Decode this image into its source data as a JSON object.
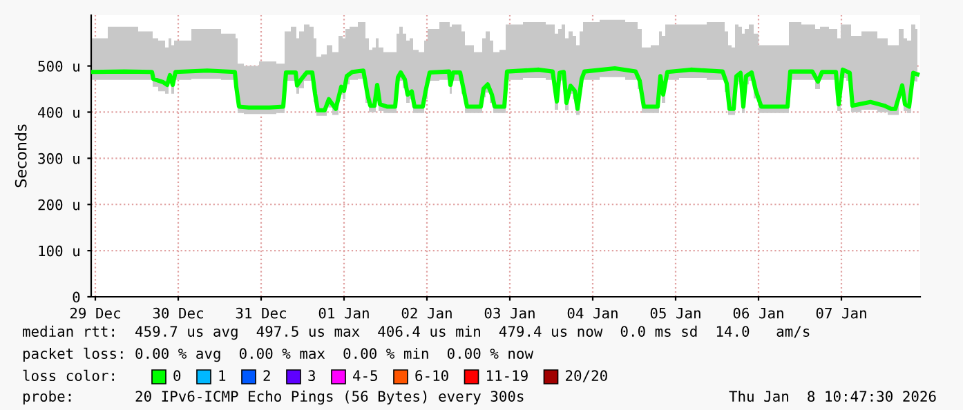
{
  "chart_data": {
    "type": "line",
    "ylabel": "Seconds",
    "x": [
      "2025-12-29T10:48",
      "2025-12-29T20:24",
      "2025-12-30T04:24",
      "2025-12-30T04:48",
      "2025-12-30T07:36",
      "2025-12-30T08:48",
      "2025-12-30T09:36",
      "2025-12-30T10:24",
      "2025-12-30T11:12",
      "2025-12-30T20:24",
      "2025-12-31T04:24",
      "2025-12-31T04:48",
      "2025-12-31T05:36",
      "2025-12-31T08:24",
      "2025-12-31T14:24",
      "2025-12-31T18:24",
      "2025-12-31T19:12",
      "2025-12-31T22:00",
      "2025-12-31T22:24",
      "2025-12-31T23:36",
      "2026-01-01T01:12",
      "2026-01-01T02:48",
      "2026-01-01T03:36",
      "2026-01-01T04:24",
      "2026-01-01T06:24",
      "2026-01-01T07:36",
      "2026-01-01T09:36",
      "2026-01-01T11:12",
      "2026-01-01T12:00",
      "2026-01-01T12:48",
      "2026-01-01T14:24",
      "2026-01-01T17:36",
      "2026-01-01T18:48",
      "2026-01-01T19:36",
      "2026-01-01T20:48",
      "2026-01-01T21:36",
      "2026-01-01T22:24",
      "2026-01-02T00:24",
      "2026-01-02T02:48",
      "2026-01-02T03:36",
      "2026-01-02T04:24",
      "2026-01-02T05:36",
      "2026-01-02T06:24",
      "2026-01-02T07:36",
      "2026-01-02T08:24",
      "2026-01-02T10:48",
      "2026-01-02T11:36",
      "2026-01-02T12:48",
      "2026-01-02T18:24",
      "2026-01-02T18:48",
      "2026-01-02T19:36",
      "2026-01-02T21:36",
      "2026-01-02T22:24",
      "2026-01-02T23:36",
      "2026-01-03T03:36",
      "2026-01-03T04:24",
      "2026-01-03T05:36",
      "2026-01-03T06:48",
      "2026-01-03T07:36",
      "2026-01-03T10:24",
      "2026-01-03T11:12",
      "2026-01-03T20:24",
      "2026-01-04T00:24",
      "2026-01-04T01:36",
      "2026-01-04T02:24",
      "2026-01-04T03:36",
      "2026-01-04T04:24",
      "2026-01-04T05:36",
      "2026-01-04T06:48",
      "2026-01-04T07:36",
      "2026-01-04T08:48",
      "2026-01-04T09:36",
      "2026-01-04T18:24",
      "2026-01-05T00:24",
      "2026-01-05T01:36",
      "2026-01-05T02:48",
      "2026-01-05T06:48",
      "2026-01-05T07:36",
      "2026-01-05T08:24",
      "2026-01-05T09:36",
      "2026-01-05T16:24",
      "2026-01-06T01:36",
      "2026-01-06T02:48",
      "2026-01-06T03:36",
      "2026-01-06T04:48",
      "2026-01-06T05:36",
      "2026-01-06T06:48",
      "2026-01-06T07:36",
      "2026-01-06T08:24",
      "2026-01-06T10:00",
      "2026-01-06T11:12",
      "2026-01-06T12:48",
      "2026-01-06T20:24",
      "2026-01-06T21:12",
      "2026-01-07T03:36",
      "2026-01-07T05:12",
      "2026-01-07T06:24",
      "2026-01-07T10:24",
      "2026-01-07T11:12",
      "2026-01-07T12:24",
      "2026-01-07T14:24",
      "2026-01-07T15:12",
      "2026-01-07T20:24",
      "2026-01-08T00:24",
      "2026-01-08T02:24",
      "2026-01-08T03:36",
      "2026-01-08T05:36",
      "2026-01-08T06:24",
      "2026-01-08T07:36",
      "2026-01-08T08:48",
      "2026-01-08T10:00"
    ],
    "series": [
      {
        "name": "0",
        "color": "#00ff00",
        "values": [
          487,
          488,
          487,
          472,
          465,
          459,
          480,
          459,
          487,
          490,
          487,
          455,
          412,
          410,
          410,
          412,
          486,
          486,
          458,
          471,
          486,
          486,
          440,
          404,
          404,
          428,
          407,
          455,
          446,
          478,
          487,
          490,
          438,
          414,
          414,
          459,
          417,
          412,
          412,
          475,
          486,
          471,
          438,
          445,
          412,
          412,
          445,
          486,
          488,
          459,
          486,
          486,
          457,
          412,
          412,
          451,
          460,
          438,
          412,
          412,
          488,
          492,
          488,
          423,
          485,
          487,
          420,
          457,
          446,
          407,
          472,
          488,
          495,
          488,
          468,
          412,
          412,
          478,
          438,
          487,
          492,
          488,
          462,
          407,
          407,
          478,
          485,
          412,
          478,
          486,
          447,
          412,
          412,
          488,
          488,
          466,
          487,
          487,
          417,
          492,
          485,
          414,
          422,
          414,
          407,
          407,
          458,
          417,
          412,
          485,
          482
        ],
        "lower": [
          470,
          470,
          470,
          455,
          445,
          440,
          462,
          440,
          470,
          472,
          470,
          440,
          398,
          396,
          396,
          398,
          468,
          468,
          440,
          452,
          468,
          468,
          422,
          392,
          392,
          410,
          394,
          438,
          428,
          460,
          470,
          472,
          420,
          400,
          400,
          440,
          402,
          398,
          398,
          458,
          468,
          452,
          420,
          428,
          398,
          398,
          428,
          468,
          470,
          440,
          468,
          468,
          440,
          398,
          398,
          432,
          442,
          420,
          398,
          398,
          470,
          474,
          470,
          405,
          468,
          470,
          404,
          440,
          428,
          394,
          455,
          470,
          476,
          470,
          450,
          398,
          398,
          460,
          420,
          470,
          474,
          470,
          444,
          394,
          394,
          460,
          466,
          398,
          460,
          468,
          430,
          398,
          398,
          470,
          470,
          450,
          470,
          470,
          402,
          474,
          468,
          400,
          405,
          400,
          394,
          394,
          440,
          402,
          398,
          468,
          466
        ],
        "upper": [
          560,
          585,
          575,
          560,
          555,
          540,
          560,
          545,
          555,
          580,
          570,
          560,
          505,
          500,
          510,
          505,
          575,
          585,
          560,
          575,
          590,
          585,
          560,
          520,
          525,
          545,
          530,
          565,
          560,
          580,
          585,
          595,
          560,
          535,
          540,
          560,
          540,
          530,
          530,
          570,
          585,
          570,
          555,
          560,
          535,
          530,
          555,
          580,
          595,
          585,
          590,
          590,
          575,
          545,
          530,
          560,
          575,
          555,
          530,
          535,
          590,
          595,
          590,
          570,
          580,
          590,
          560,
          575,
          565,
          545,
          575,
          595,
          600,
          595,
          580,
          540,
          545,
          575,
          565,
          590,
          590,
          595,
          575,
          545,
          540,
          590,
          585,
          570,
          580,
          590,
          570,
          545,
          545,
          595,
          590,
          580,
          585,
          580,
          560,
          590,
          590,
          565,
          575,
          560,
          545,
          545,
          580,
          560,
          555,
          590,
          580
        ]
      },
      {
        "name": "1",
        "color": "#00b8ff",
        "values": [
          null,
          null,
          null,
          null,
          null,
          null,
          null,
          null,
          null,
          null,
          null,
          null,
          null,
          null,
          null,
          null,
          null,
          null,
          null,
          null,
          null,
          null,
          null,
          null,
          null,
          null,
          null,
          null,
          null,
          null,
          null,
          null,
          null,
          null,
          null,
          null,
          null,
          null,
          null,
          null,
          null,
          null,
          null,
          null,
          null,
          null,
          null,
          null,
          null,
          null,
          null,
          null,
          null,
          null,
          null,
          null,
          null,
          null,
          null,
          null,
          null,
          null,
          null,
          null,
          null,
          null,
          null,
          null,
          null,
          null,
          null,
          null,
          null,
          null,
          null,
          null,
          null,
          null,
          null,
          null,
          null,
          null,
          null,
          null,
          null,
          null,
          null,
          null,
          null,
          null,
          null,
          null,
          null,
          null,
          null,
          null,
          null,
          null,
          null,
          null,
          null,
          null,
          null,
          null,
          null,
          null,
          null,
          null,
          null,
          null,
          null
        ]
      },
      {
        "name": "2",
        "color": "#0059ff",
        "values": [
          null,
          null,
          null,
          null,
          null,
          null,
          null,
          null,
          null,
          null,
          null,
          null,
          null,
          null,
          null,
          null,
          null,
          null,
          null,
          null,
          null,
          null,
          null,
          null,
          null,
          null,
          null,
          null,
          null,
          null,
          null,
          null,
          null,
          null,
          null,
          null,
          null,
          null,
          null,
          null,
          null,
          null,
          null,
          null,
          null,
          null,
          null,
          null,
          null,
          null,
          null,
          null,
          null,
          null,
          null,
          null,
          null,
          null,
          null,
          null,
          null,
          null,
          null,
          null,
          null,
          null,
          null,
          null,
          null,
          null,
          null,
          null,
          null,
          null,
          null,
          null,
          null,
          null,
          null,
          null,
          null,
          null,
          null,
          null,
          null,
          null,
          null,
          null,
          null,
          null,
          null,
          null,
          null,
          null,
          null,
          null,
          null,
          null,
          null,
          null,
          null,
          null,
          null,
          null,
          null,
          null,
          null,
          null,
          null,
          null,
          null
        ]
      },
      {
        "name": "3",
        "color": "#5e00ff",
        "values": [
          null,
          null,
          null,
          null,
          null,
          null,
          null,
          null,
          null,
          null,
          null,
          null,
          null,
          null,
          null,
          null,
          null,
          null,
          null,
          null,
          null,
          null,
          null,
          null,
          null,
          null,
          null,
          null,
          null,
          null,
          null,
          null,
          null,
          null,
          null,
          null,
          null,
          null,
          null,
          null,
          null,
          null,
          null,
          null,
          null,
          null,
          null,
          null,
          null,
          null,
          null,
          null,
          null,
          null,
          null,
          null,
          null,
          null,
          null,
          null,
          null,
          null,
          null,
          null,
          null,
          null,
          null,
          null,
          null,
          null,
          null,
          null,
          null,
          null,
          null,
          null,
          null,
          null,
          null,
          null,
          null,
          null,
          null,
          null,
          null,
          null,
          null,
          null,
          null,
          null,
          null,
          null,
          null,
          null,
          null,
          null,
          null,
          null,
          null,
          null,
          null,
          null,
          null,
          null,
          null,
          null,
          null,
          null,
          null,
          null,
          null
        ]
      },
      {
        "name": "4-5",
        "color": "#ff00ff",
        "values": [
          null,
          null,
          null,
          null,
          null,
          null,
          null,
          null,
          null,
          null,
          null,
          null,
          null,
          null,
          null,
          null,
          null,
          null,
          null,
          null,
          null,
          null,
          null,
          null,
          null,
          null,
          null,
          null,
          null,
          null,
          null,
          null,
          null,
          null,
          null,
          null,
          null,
          null,
          null,
          null,
          null,
          null,
          null,
          null,
          null,
          null,
          null,
          null,
          null,
          null,
          null,
          null,
          null,
          null,
          null,
          null,
          null,
          null,
          null,
          null,
          null,
          null,
          null,
          null,
          null,
          null,
          null,
          null,
          null,
          null,
          null,
          null,
          null,
          null,
          null,
          null,
          null,
          null,
          null,
          null,
          null,
          null,
          null,
          null,
          null,
          null,
          null,
          null,
          null,
          null,
          null,
          null,
          null,
          null,
          null,
          null,
          null,
          null,
          null,
          null,
          null,
          null,
          null,
          null,
          null,
          null,
          null,
          null,
          null,
          null,
          null
        ]
      },
      {
        "name": "6-10",
        "color": "#ff5500",
        "values": [
          null,
          null,
          null,
          null,
          null,
          null,
          null,
          null,
          null,
          null,
          null,
          null,
          null,
          null,
          null,
          null,
          null,
          null,
          null,
          null,
          null,
          null,
          null,
          null,
          null,
          null,
          null,
          null,
          null,
          null,
          null,
          null,
          null,
          null,
          null,
          null,
          null,
          null,
          null,
          null,
          null,
          null,
          null,
          null,
          null,
          null,
          null,
          null,
          null,
          null,
          null,
          null,
          null,
          null,
          null,
          null,
          null,
          null,
          null,
          null,
          null,
          null,
          null,
          null,
          null,
          null,
          null,
          null,
          null,
          null,
          null,
          null,
          null,
          null,
          null,
          null,
          null,
          null,
          null,
          null,
          null,
          null,
          null,
          null,
          null,
          null,
          null,
          null,
          null,
          null,
          null,
          null,
          null,
          null,
          null,
          null,
          null,
          null,
          null,
          null,
          null,
          null,
          null,
          null,
          null,
          null,
          null,
          null,
          null,
          null,
          null
        ]
      },
      {
        "name": "11-19",
        "color": "#ff0000",
        "values": [
          null,
          null,
          null,
          null,
          null,
          null,
          null,
          null,
          null,
          null,
          null,
          null,
          null,
          null,
          null,
          null,
          null,
          null,
          null,
          null,
          null,
          null,
          null,
          null,
          null,
          null,
          null,
          null,
          null,
          null,
          null,
          null,
          null,
          null,
          null,
          null,
          null,
          null,
          null,
          null,
          null,
          null,
          null,
          null,
          null,
          null,
          null,
          null,
          null,
          null,
          null,
          null,
          null,
          null,
          null,
          null,
          null,
          null,
          null,
          null,
          null,
          null,
          null,
          null,
          null,
          null,
          null,
          null,
          null,
          null,
          null,
          null,
          null,
          null,
          null,
          null,
          null,
          null,
          null,
          null,
          null,
          null,
          null,
          null,
          null,
          null,
          null,
          null,
          null,
          null,
          null,
          null,
          null,
          null,
          null,
          null,
          null,
          null,
          null,
          null,
          null,
          null,
          null,
          null,
          null,
          null,
          null,
          null,
          null,
          null,
          null
        ]
      },
      {
        "name": "20/20",
        "color": "#a10000",
        "values": [
          null,
          null,
          null,
          null,
          null,
          null,
          null,
          null,
          null,
          null,
          null,
          null,
          null,
          null,
          null,
          null,
          null,
          null,
          null,
          null,
          null,
          null,
          null,
          null,
          null,
          null,
          null,
          null,
          null,
          null,
          null,
          null,
          null,
          null,
          null,
          null,
          null,
          null,
          null,
          null,
          null,
          null,
          null,
          null,
          null,
          null,
          null,
          null,
          null,
          null,
          null,
          null,
          null,
          null,
          null,
          null,
          null,
          null,
          null,
          null,
          null,
          null,
          null,
          null,
          null,
          null,
          null,
          null,
          null,
          null,
          null,
          null,
          null,
          null,
          null,
          null,
          null,
          null,
          null,
          null,
          null,
          null,
          null,
          null,
          null,
          null,
          null,
          null,
          null,
          null,
          null,
          null,
          null,
          null,
          null,
          null,
          null,
          null,
          null,
          null,
          null,
          null,
          null,
          null,
          null,
          null,
          null,
          null,
          null,
          null,
          null
        ]
      }
    ],
    "xlim": [
      "2025-12-29T10:48",
      "2026-01-08T10:48"
    ],
    "xticks": [
      {
        "value": "2025-12-29T12:00",
        "label": "29 Dec"
      },
      {
        "value": "2025-12-30T12:00",
        "label": "30 Dec"
      },
      {
        "value": "2025-12-31T12:00",
        "label": "31 Dec"
      },
      {
        "value": "2026-01-01T12:00",
        "label": "01 Jan"
      },
      {
        "value": "2026-01-02T12:00",
        "label": "02 Jan"
      },
      {
        "value": "2026-01-03T12:00",
        "label": "03 Jan"
      },
      {
        "value": "2026-01-04T12:00",
        "label": "04 Jan"
      },
      {
        "value": "2026-01-05T12:00",
        "label": "05 Jan"
      },
      {
        "value": "2026-01-06T12:00",
        "label": "06 Jan"
      },
      {
        "value": "2026-01-07T12:00",
        "label": "07 Jan"
      }
    ],
    "ylim": [
      0,
      610
    ],
    "yticks": [
      0,
      {
        "value": 100,
        "label": "100 u"
      },
      {
        "value": 200,
        "label": "200 u"
      },
      {
        "value": 300,
        "label": "300 u"
      },
      {
        "value": 400,
        "label": "400 u"
      },
      {
        "value": 500,
        "label": "500 u"
      }
    ],
    "grid": true,
    "legend": "bottom",
    "annotations": [
      "median rtt:  459.7 us avg  497.5 us max  406.4 us min  479.4 us now  0.0 ms sd  14.0   am/s",
      "packet loss: 0.00 % avg  0.00 % max  0.00 % min  0.00 % now",
      "loss color:",
      "probe:       20 IPv6-ICMP Echo Pings (56 Bytes) every 300s",
      "Thu Jan  8 10:47:30 2026"
    ]
  }
}
